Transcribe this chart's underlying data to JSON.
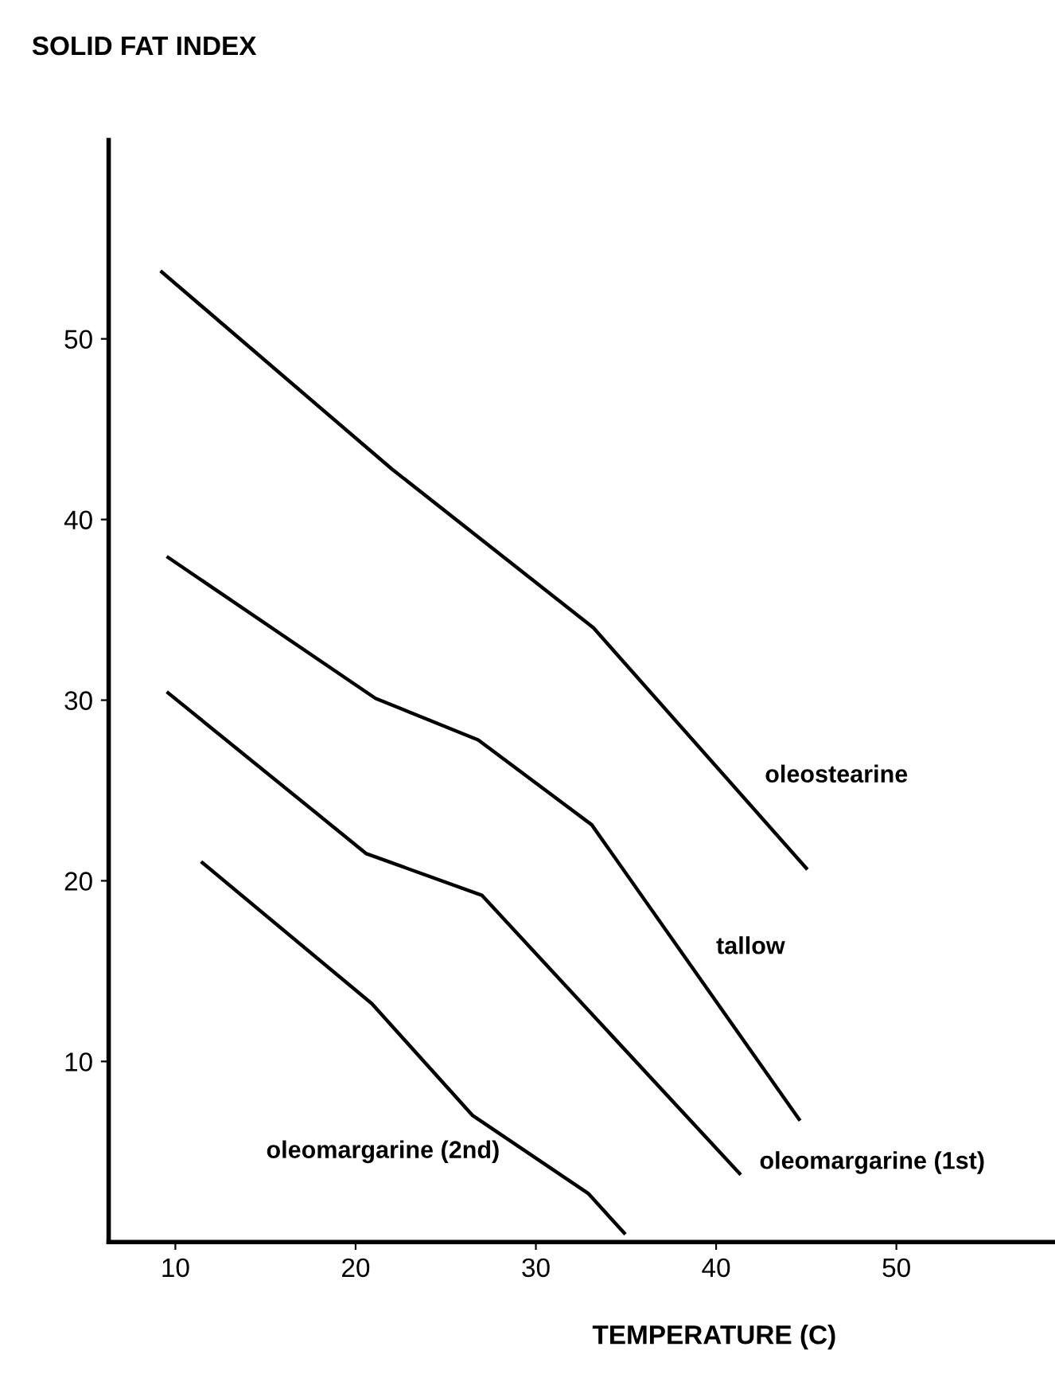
{
  "chart_data": {
    "type": "line",
    "title": "SOLID FAT INDEX",
    "xlabel": "TEMPERATURE (C)",
    "xlim": [
      6.3,
      58.8
    ],
    "ylim": [
      0,
      61
    ],
    "xticks": [
      10,
      20,
      30,
      40,
      50
    ],
    "yticks": [
      10,
      20,
      30,
      40,
      50
    ],
    "grid": false,
    "legend": false,
    "marker": "none",
    "line_style": "solid",
    "series": [
      {
        "name": "oleostearine",
        "color": "#000000",
        "x": [
          9.25,
          22.0,
          33.2,
          45.0
        ],
        "values": [
          53.7,
          42.8,
          34.0,
          20.7
        ]
      },
      {
        "name": "tallow",
        "color": "#000000",
        "x": [
          9.6,
          21.1,
          26.8,
          33.1,
          44.6
        ],
        "values": [
          37.9,
          30.1,
          27.8,
          23.1,
          6.8
        ]
      },
      {
        "name": "oleomargarine (1st)",
        "color": "#000000",
        "x": [
          9.6,
          20.6,
          27.0,
          41.3
        ],
        "values": [
          30.4,
          21.5,
          19.2,
          3.8
        ]
      },
      {
        "name": "oleomargarine (2nd)",
        "color": "#000000",
        "x": [
          11.5,
          20.9,
          26.5,
          32.9,
          34.9
        ],
        "values": [
          21.0,
          13.2,
          7.0,
          2.7,
          0.5
        ]
      }
    ]
  }
}
